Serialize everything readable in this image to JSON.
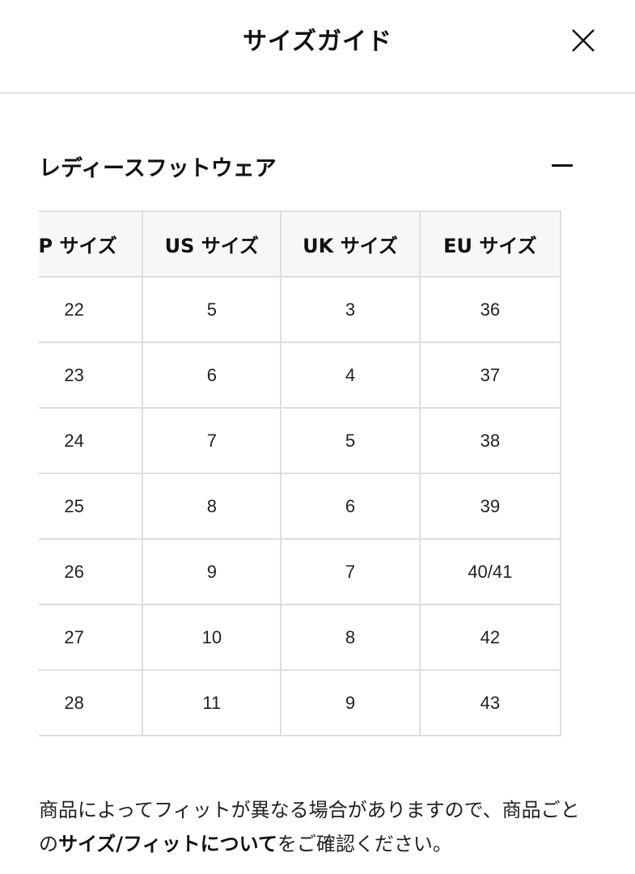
{
  "header": {
    "title": "サイズガイド",
    "close_icon": "close-icon"
  },
  "section": {
    "title": "レディースフットウェア",
    "toggle_icon": "minus-icon"
  },
  "table": {
    "columns": [
      "JP サイズ",
      "US サイズ",
      "UK サイズ",
      "EU サイズ"
    ],
    "rows": [
      [
        "22",
        "5",
        "3",
        "36"
      ],
      [
        "23",
        "6",
        "4",
        "37"
      ],
      [
        "24",
        "7",
        "5",
        "38"
      ],
      [
        "25",
        "8",
        "6",
        "39"
      ],
      [
        "26",
        "9",
        "7",
        "40/41"
      ],
      [
        "27",
        "10",
        "8",
        "42"
      ],
      [
        "28",
        "11",
        "9",
        "43"
      ]
    ]
  },
  "note": {
    "before": "商品によってフィットが異なる場合がありますので、商品ごとの",
    "link": "サイズ/フィットについて",
    "after": "をご確認ください。"
  }
}
